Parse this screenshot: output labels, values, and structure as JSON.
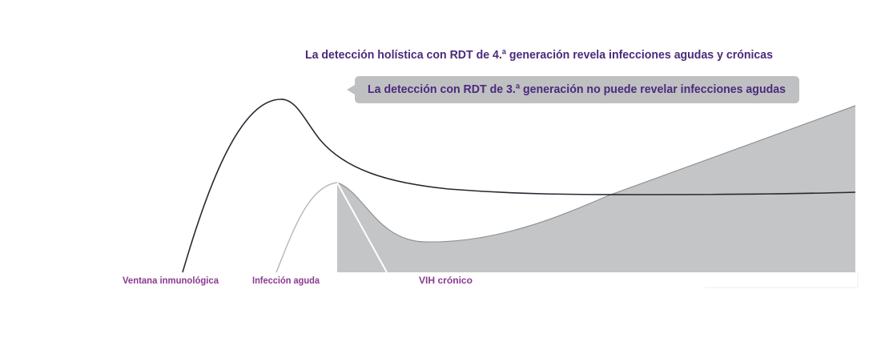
{
  "title": "La detección holística con RDT de 4.ª generación revela infecciones agudas y crónicas",
  "callout": "La detección con RDT de 3.ª generación no puede revelar infecciones agudas",
  "labels": [
    "Ventana inmunológica",
    "Infección aguda",
    "VIH crónico"
  ]
}
